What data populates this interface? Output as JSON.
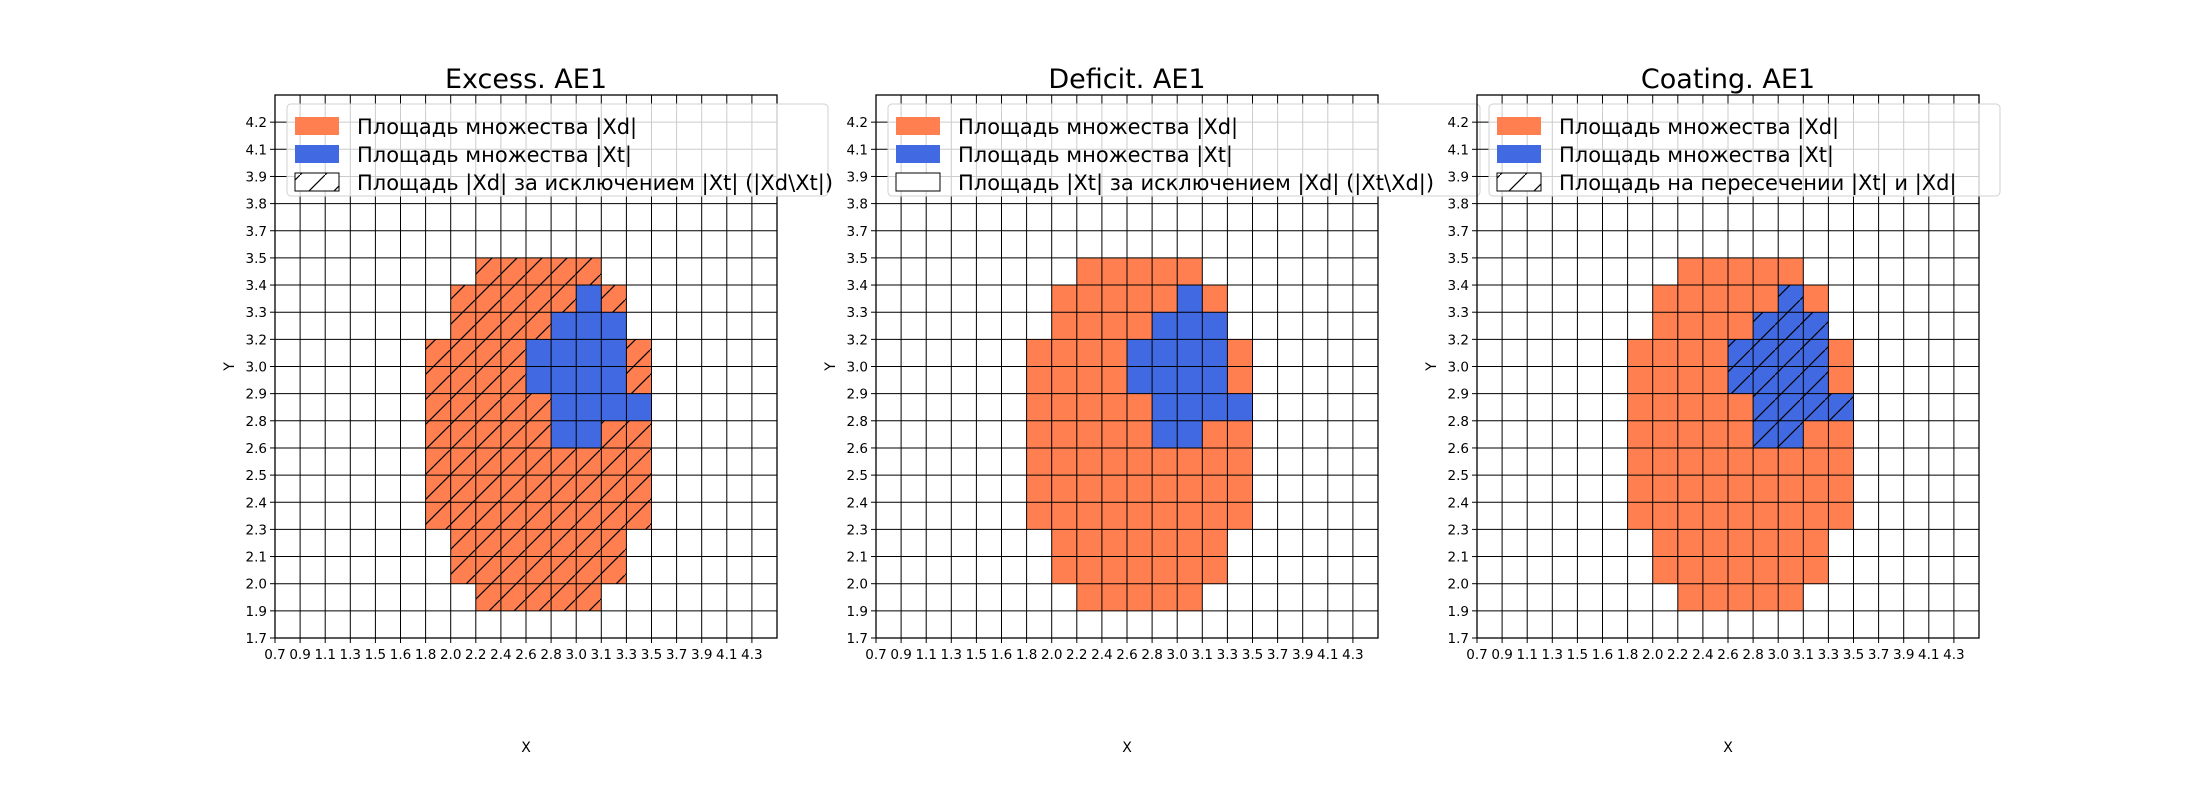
{
  "colors": {
    "xd": "#ff7f50",
    "xt": "#4169e1",
    "grid": "#000000",
    "background": "#ffffff"
  },
  "chart_data": [
    {
      "type": "heatmap",
      "title": "Excess. AE1",
      "xlabel": "X",
      "ylabel": "Y",
      "hatch": "xd_minus_xt",
      "legend": [
        "Площадь множества |Xd|",
        "Площадь множества  |Xt|",
        "Площадь |Xd| за исключением |Xt| (|Xd\\Xt|)"
      ],
      "legend_placement": "upper-left"
    },
    {
      "type": "heatmap",
      "title": "Deficit. AE1",
      "xlabel": "X",
      "ylabel": "Y",
      "hatch": "none",
      "legend": [
        "Площадь множества |Xd|",
        "Площадь множества  |Xt|",
        "Площадь |Xt| за исключением |Xd| (|Xt\\Xd|)"
      ],
      "legend_placement": "upper-left"
    },
    {
      "type": "heatmap",
      "title": "Coating. AE1",
      "xlabel": "X",
      "ylabel": "Y",
      "hatch": "intersection",
      "legend": [
        "Площадь множества |Xd|",
        "Площадь множества  |Xt|",
        "Площадь на пересечении |Xt| и |Xd|"
      ],
      "legend_placement": "upper-left"
    }
  ],
  "axes": {
    "x_ticks": [
      "0.7",
      "0.9",
      "1.1",
      "1.3",
      "1.5",
      "1.6",
      "1.8",
      "2.0",
      "2.2",
      "2.4",
      "2.6",
      "2.8",
      "3.0",
      "3.1",
      "3.3",
      "3.5",
      "3.7",
      "3.9",
      "4.1",
      "4.3"
    ],
    "y_ticks": [
      "1.7",
      "1.9",
      "2.0",
      "2.1",
      "2.3",
      "2.4",
      "2.5",
      "2.6",
      "2.8",
      "2.9",
      "3.0",
      "3.2",
      "3.3",
      "3.4",
      "3.5",
      "3.7",
      "3.8",
      "3.9",
      "4.1",
      "4.2"
    ],
    "grid": true
  },
  "xd_cells": [
    {
      "y": "1.9",
      "x": [
        "2.2",
        "2.4",
        "2.6",
        "2.8",
        "3.0"
      ]
    },
    {
      "y": "2.0",
      "x": [
        "2.0",
        "2.2",
        "2.4",
        "2.6",
        "2.8",
        "3.0",
        "3.1"
      ]
    },
    {
      "y": "2.1",
      "x": [
        "2.0",
        "2.2",
        "2.4",
        "2.6",
        "2.8",
        "3.0",
        "3.1"
      ]
    },
    {
      "y": "2.3",
      "x": [
        "1.8",
        "2.0",
        "2.2",
        "2.4",
        "2.6",
        "2.8",
        "3.0",
        "3.1",
        "3.3"
      ]
    },
    {
      "y": "2.4",
      "x": [
        "1.8",
        "2.0",
        "2.2",
        "2.4",
        "2.6",
        "2.8",
        "3.0",
        "3.1",
        "3.3"
      ]
    },
    {
      "y": "2.5",
      "x": [
        "1.8",
        "2.0",
        "2.2",
        "2.4",
        "2.6",
        "2.8",
        "3.0",
        "3.1",
        "3.3"
      ]
    },
    {
      "y": "2.6",
      "x": [
        "1.8",
        "2.0",
        "2.2",
        "2.4",
        "2.6",
        "2.8",
        "3.0",
        "3.1",
        "3.3"
      ]
    },
    {
      "y": "2.8",
      "x": [
        "1.8",
        "2.0",
        "2.2",
        "2.4",
        "2.6",
        "2.8",
        "3.0",
        "3.1",
        "3.3"
      ]
    },
    {
      "y": "2.9",
      "x": [
        "1.8",
        "2.0",
        "2.2",
        "2.4",
        "2.6",
        "2.8",
        "3.0",
        "3.1",
        "3.3"
      ]
    },
    {
      "y": "3.0",
      "x": [
        "1.8",
        "2.0",
        "2.2",
        "2.4",
        "2.6",
        "2.8",
        "3.0",
        "3.1",
        "3.3"
      ]
    },
    {
      "y": "3.2",
      "x": [
        "2.0",
        "2.2",
        "2.4",
        "2.6",
        "2.8",
        "3.0",
        "3.1"
      ]
    },
    {
      "y": "3.3",
      "x": [
        "2.0",
        "2.2",
        "2.4",
        "2.6",
        "2.8",
        "3.0",
        "3.1"
      ]
    },
    {
      "y": "3.4",
      "x": [
        "2.2",
        "2.4",
        "2.6",
        "2.8",
        "3.0"
      ]
    }
  ],
  "xt_cells": [
    {
      "y": "2.6",
      "x": [
        "2.8",
        "3.0"
      ]
    },
    {
      "y": "2.8",
      "x": [
        "2.8",
        "3.0",
        "3.1",
        "3.3"
      ]
    },
    {
      "y": "2.9",
      "x": [
        "2.6",
        "2.8",
        "3.0",
        "3.1"
      ]
    },
    {
      "y": "3.0",
      "x": [
        "2.6",
        "2.8",
        "3.0",
        "3.1"
      ]
    },
    {
      "y": "3.2",
      "x": [
        "2.8",
        "3.0",
        "3.1"
      ]
    },
    {
      "y": "3.3",
      "x": [
        "3.0"
      ]
    }
  ]
}
